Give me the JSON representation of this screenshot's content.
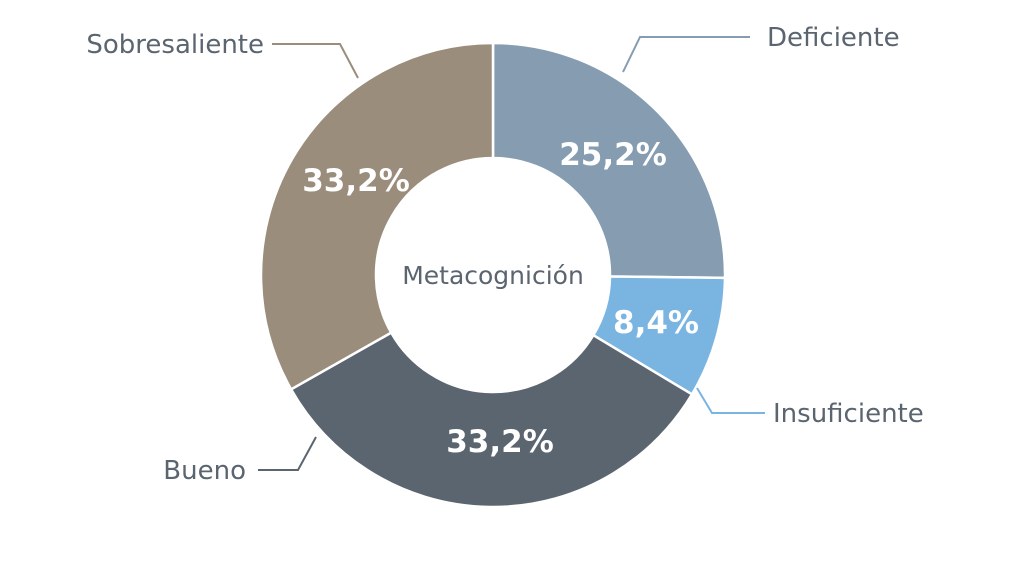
{
  "chart_data": {
    "type": "pie",
    "variant": "donut",
    "title": "Metacognición",
    "categories": [
      "Deficiente",
      "Insuficiente",
      "Bueno",
      "Sobresaliente"
    ],
    "values": [
      25.2,
      8.4,
      33.2,
      33.2
    ],
    "labels": [
      "25,2%",
      "8,4%",
      "33,2%",
      "33,2%"
    ],
    "colors": [
      "#869cb0",
      "#7ab5e2",
      "#5b6570",
      "#9a8d7c"
    ],
    "start": "top",
    "direction": "clockwise",
    "legend": "leader-lines"
  }
}
